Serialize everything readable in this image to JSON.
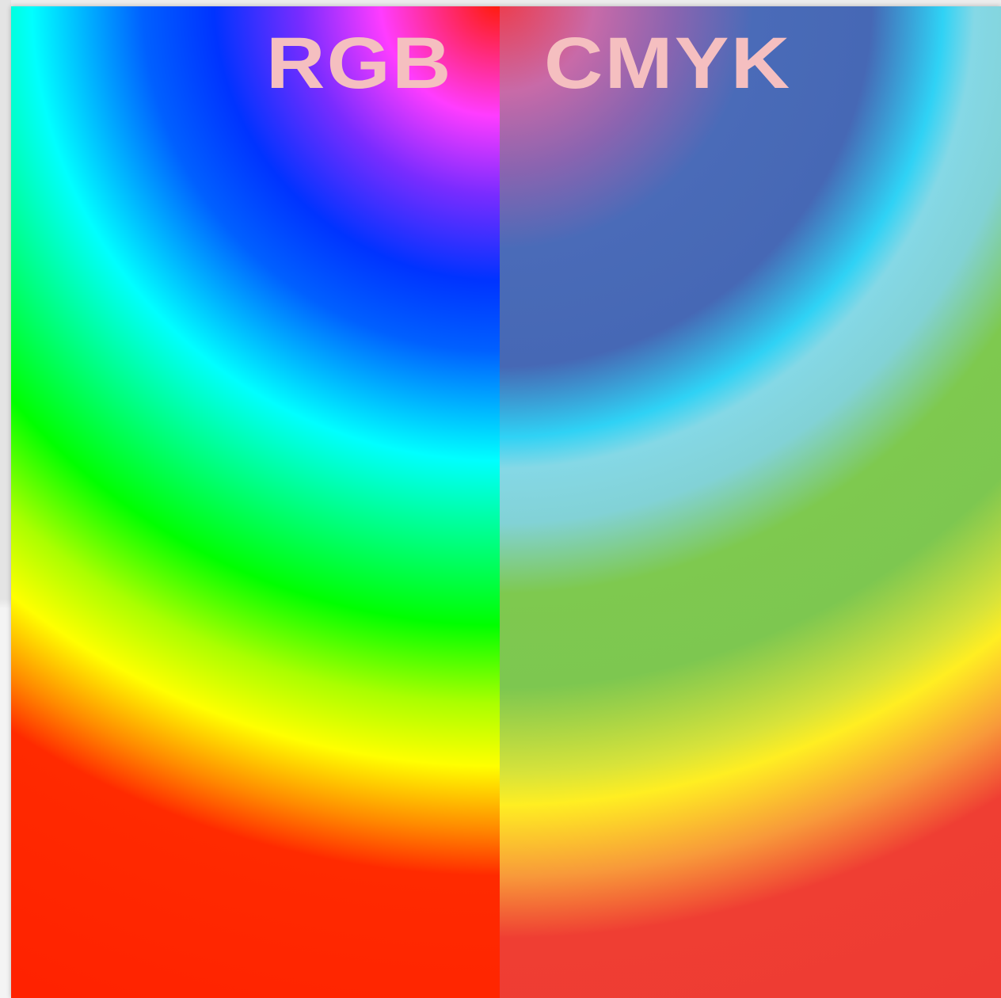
{
  "figure": {
    "left_panel": {
      "label": "RGB",
      "colors": [
        "#ff1a00",
        "#ff3cff",
        "#0033ff",
        "#00ffff",
        "#00ff00",
        "#ffff00",
        "#ff2200"
      ]
    },
    "right_panel": {
      "label": "CMYK",
      "colors": [
        "#ee3b4a",
        "#4668b5",
        "#85d8e6",
        "#7dc750",
        "#ffee22",
        "#ee3b33"
      ]
    },
    "label_color": "#f5bfc0"
  }
}
